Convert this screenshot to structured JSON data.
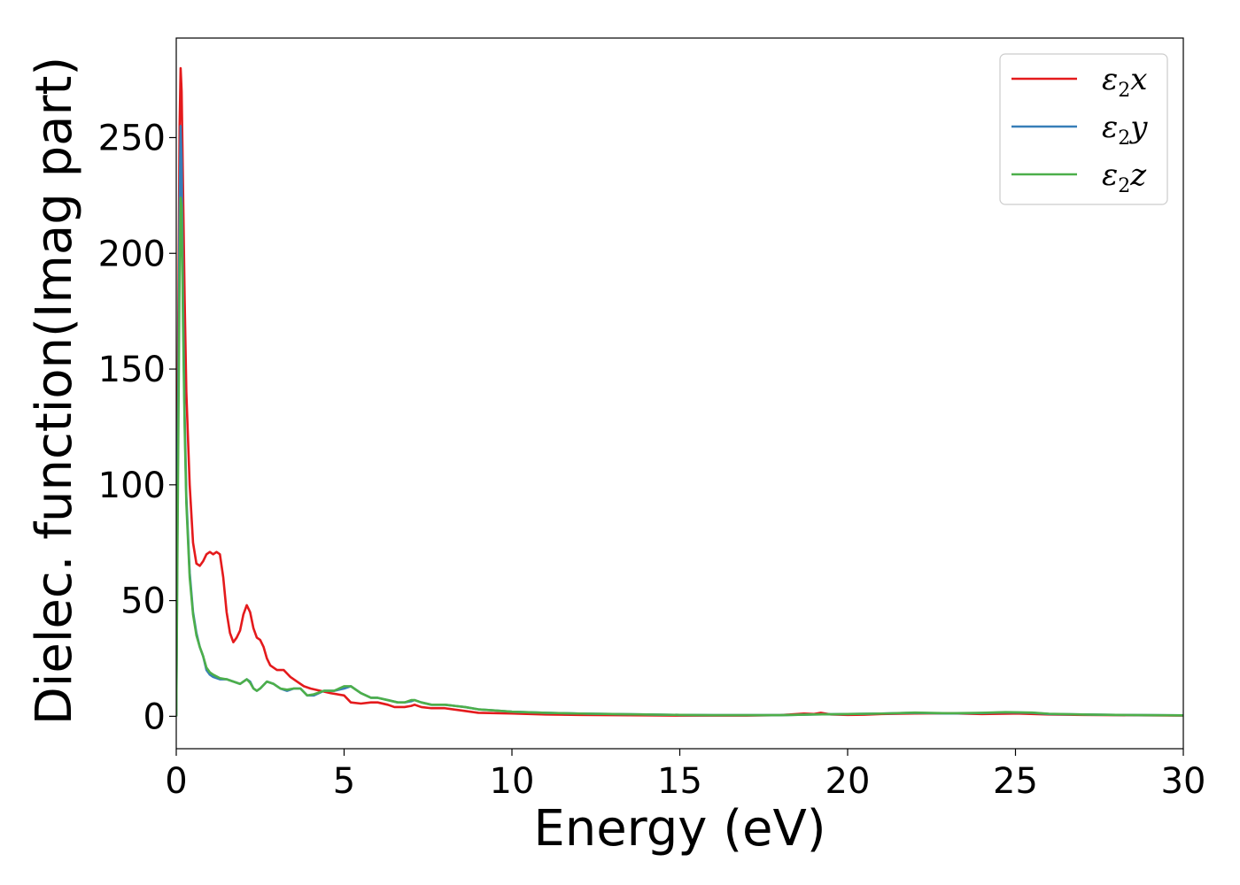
{
  "chart_data": {
    "type": "line",
    "title": "",
    "xlabel": "Energy (eV)",
    "ylabel": "Dielec. function(Imag part)",
    "xlim": [
      0,
      30
    ],
    "ylim": [
      -14,
      293
    ],
    "xticks": [
      0,
      5,
      10,
      15,
      20,
      25,
      30
    ],
    "yticks": [
      0,
      50,
      100,
      150,
      200,
      250
    ],
    "grid": false,
    "legend_position": "top-right",
    "series": [
      {
        "name": "ε2x",
        "legend_base": "ε",
        "legend_sub": "2",
        "legend_var": "x",
        "color": "#e41a1c",
        "x": [
          0,
          0.05,
          0.1,
          0.13,
          0.16,
          0.2,
          0.25,
          0.3,
          0.4,
          0.5,
          0.6,
          0.7,
          0.8,
          0.9,
          1.0,
          1.1,
          1.2,
          1.3,
          1.4,
          1.5,
          1.6,
          1.7,
          1.8,
          1.9,
          2.0,
          2.1,
          2.2,
          2.3,
          2.4,
          2.5,
          2.6,
          2.7,
          2.8,
          2.9,
          3.0,
          3.2,
          3.4,
          3.6,
          3.8,
          4.0,
          4.3,
          4.6,
          5.0,
          5.2,
          5.5,
          5.8,
          6.0,
          6.3,
          6.5,
          6.8,
          7.0,
          7.1,
          7.3,
          7.6,
          8.0,
          8.5,
          9.0,
          10.0,
          11.0,
          12.0,
          13.0,
          14.0,
          15.0,
          16.0,
          17.0,
          18.0,
          18.7,
          19.0,
          19.2,
          19.5,
          20.0,
          20.5,
          21.0,
          22.0,
          23.0,
          24.0,
          25.0,
          26.0,
          27.0,
          28.0,
          29.0,
          30.0
        ],
        "y": [
          0,
          150,
          255,
          280,
          270,
          230,
          180,
          140,
          100,
          75,
          66,
          65,
          67,
          70,
          71,
          70,
          71,
          70,
          60,
          45,
          36,
          32,
          34,
          37,
          44,
          48,
          45,
          38,
          34,
          33,
          30,
          25,
          22,
          21,
          20,
          20,
          17,
          15,
          13,
          12,
          11,
          10,
          9,
          6,
          5.5,
          6,
          6,
          5,
          4,
          4,
          4.5,
          5,
          4,
          3.5,
          3.5,
          2.5,
          1.5,
          1.2,
          0.8,
          0.6,
          0.5,
          0.4,
          0.3,
          0.3,
          0.3,
          0.5,
          1.2,
          1.0,
          1.5,
          0.8,
          0.6,
          0.7,
          1.0,
          1.2,
          1.3,
          1.0,
          1.2,
          0.8,
          0.6,
          0.5,
          0.4,
          0.3
        ]
      },
      {
        "name": "ε2y",
        "legend_base": "ε",
        "legend_sub": "2",
        "legend_var": "y",
        "color": "#377eb8",
        "x": [
          0,
          0.05,
          0.1,
          0.13,
          0.16,
          0.2,
          0.25,
          0.3,
          0.4,
          0.5,
          0.6,
          0.7,
          0.8,
          0.9,
          1.0,
          1.1,
          1.3,
          1.5,
          1.7,
          1.9,
          2.0,
          2.1,
          2.2,
          2.3,
          2.4,
          2.5,
          2.7,
          2.9,
          3.1,
          3.3,
          3.5,
          3.7,
          3.9,
          4.1,
          4.4,
          4.7,
          5.0,
          5.2,
          5.5,
          5.8,
          6.0,
          6.3,
          6.6,
          6.8,
          7.0,
          7.1,
          7.3,
          7.6,
          8.0,
          8.3,
          8.6,
          9.0,
          9.5,
          10.0,
          11.0,
          12.0,
          13.0,
          14.0,
          15.0,
          16.0,
          17.0,
          18.0,
          19.0,
          20.0,
          21.0,
          22.0,
          23.0,
          24.0,
          24.7,
          25.5,
          26.0,
          27.0,
          28.0,
          29.0,
          30.0
        ],
        "y": [
          0,
          120,
          220,
          255,
          240,
          180,
          130,
          95,
          62,
          45,
          36,
          30,
          26,
          20,
          18,
          17,
          16,
          16,
          15,
          14,
          15,
          16,
          15,
          12,
          11,
          12,
          15,
          14,
          12,
          11,
          12,
          12,
          9,
          9,
          11,
          11,
          12,
          13,
          10,
          8,
          8,
          7,
          6,
          6,
          6.5,
          7,
          6,
          5,
          5,
          4.5,
          4,
          3,
          2.5,
          2,
          1.5,
          1.2,
          1.0,
          0.8,
          0.6,
          0.5,
          0.5,
          0.5,
          0.8,
          1.0,
          1.2,
          1.5,
          1.2,
          1.4,
          1.7,
          1.5,
          1.0,
          0.8,
          0.6,
          0.5,
          0.4
        ]
      },
      {
        "name": "ε2z",
        "legend_base": "ε",
        "legend_sub": "2",
        "legend_var": "z",
        "color": "#4daf4a",
        "x": [
          0,
          0.05,
          0.1,
          0.13,
          0.16,
          0.2,
          0.25,
          0.3,
          0.4,
          0.5,
          0.6,
          0.7,
          0.8,
          0.9,
          1.0,
          1.1,
          1.3,
          1.5,
          1.7,
          1.9,
          2.0,
          2.1,
          2.2,
          2.3,
          2.4,
          2.5,
          2.7,
          2.9,
          3.1,
          3.3,
          3.5,
          3.7,
          3.9,
          4.1,
          4.4,
          4.7,
          5.0,
          5.2,
          5.5,
          5.8,
          6.0,
          6.3,
          6.6,
          6.8,
          7.0,
          7.1,
          7.3,
          7.6,
          8.0,
          8.3,
          8.6,
          9.0,
          9.5,
          10.0,
          11.0,
          12.0,
          13.0,
          14.0,
          15.0,
          16.0,
          17.0,
          18.0,
          19.0,
          20.0,
          21.0,
          22.0,
          23.0,
          24.0,
          24.7,
          25.5,
          26.0,
          27.0,
          28.0,
          29.0,
          30.0
        ],
        "y": [
          0,
          100,
          190,
          224,
          220,
          170,
          125,
          92,
          60,
          44,
          35,
          30,
          26,
          21,
          19,
          18,
          16.5,
          16,
          15,
          14,
          15,
          16,
          14.5,
          12,
          11,
          12,
          15,
          14,
          12,
          11.5,
          12,
          12,
          9,
          9.5,
          11,
          11,
          13,
          13,
          10,
          8,
          8,
          7,
          6,
          6,
          7,
          7,
          6,
          5,
          5,
          4.5,
          4,
          3,
          2.5,
          2,
          1.5,
          1.2,
          1.0,
          0.8,
          0.6,
          0.5,
          0.5,
          0.5,
          0.8,
          1.0,
          1.2,
          1.6,
          1.3,
          1.5,
          1.8,
          1.6,
          1.1,
          0.8,
          0.6,
          0.5,
          0.4
        ]
      }
    ]
  }
}
